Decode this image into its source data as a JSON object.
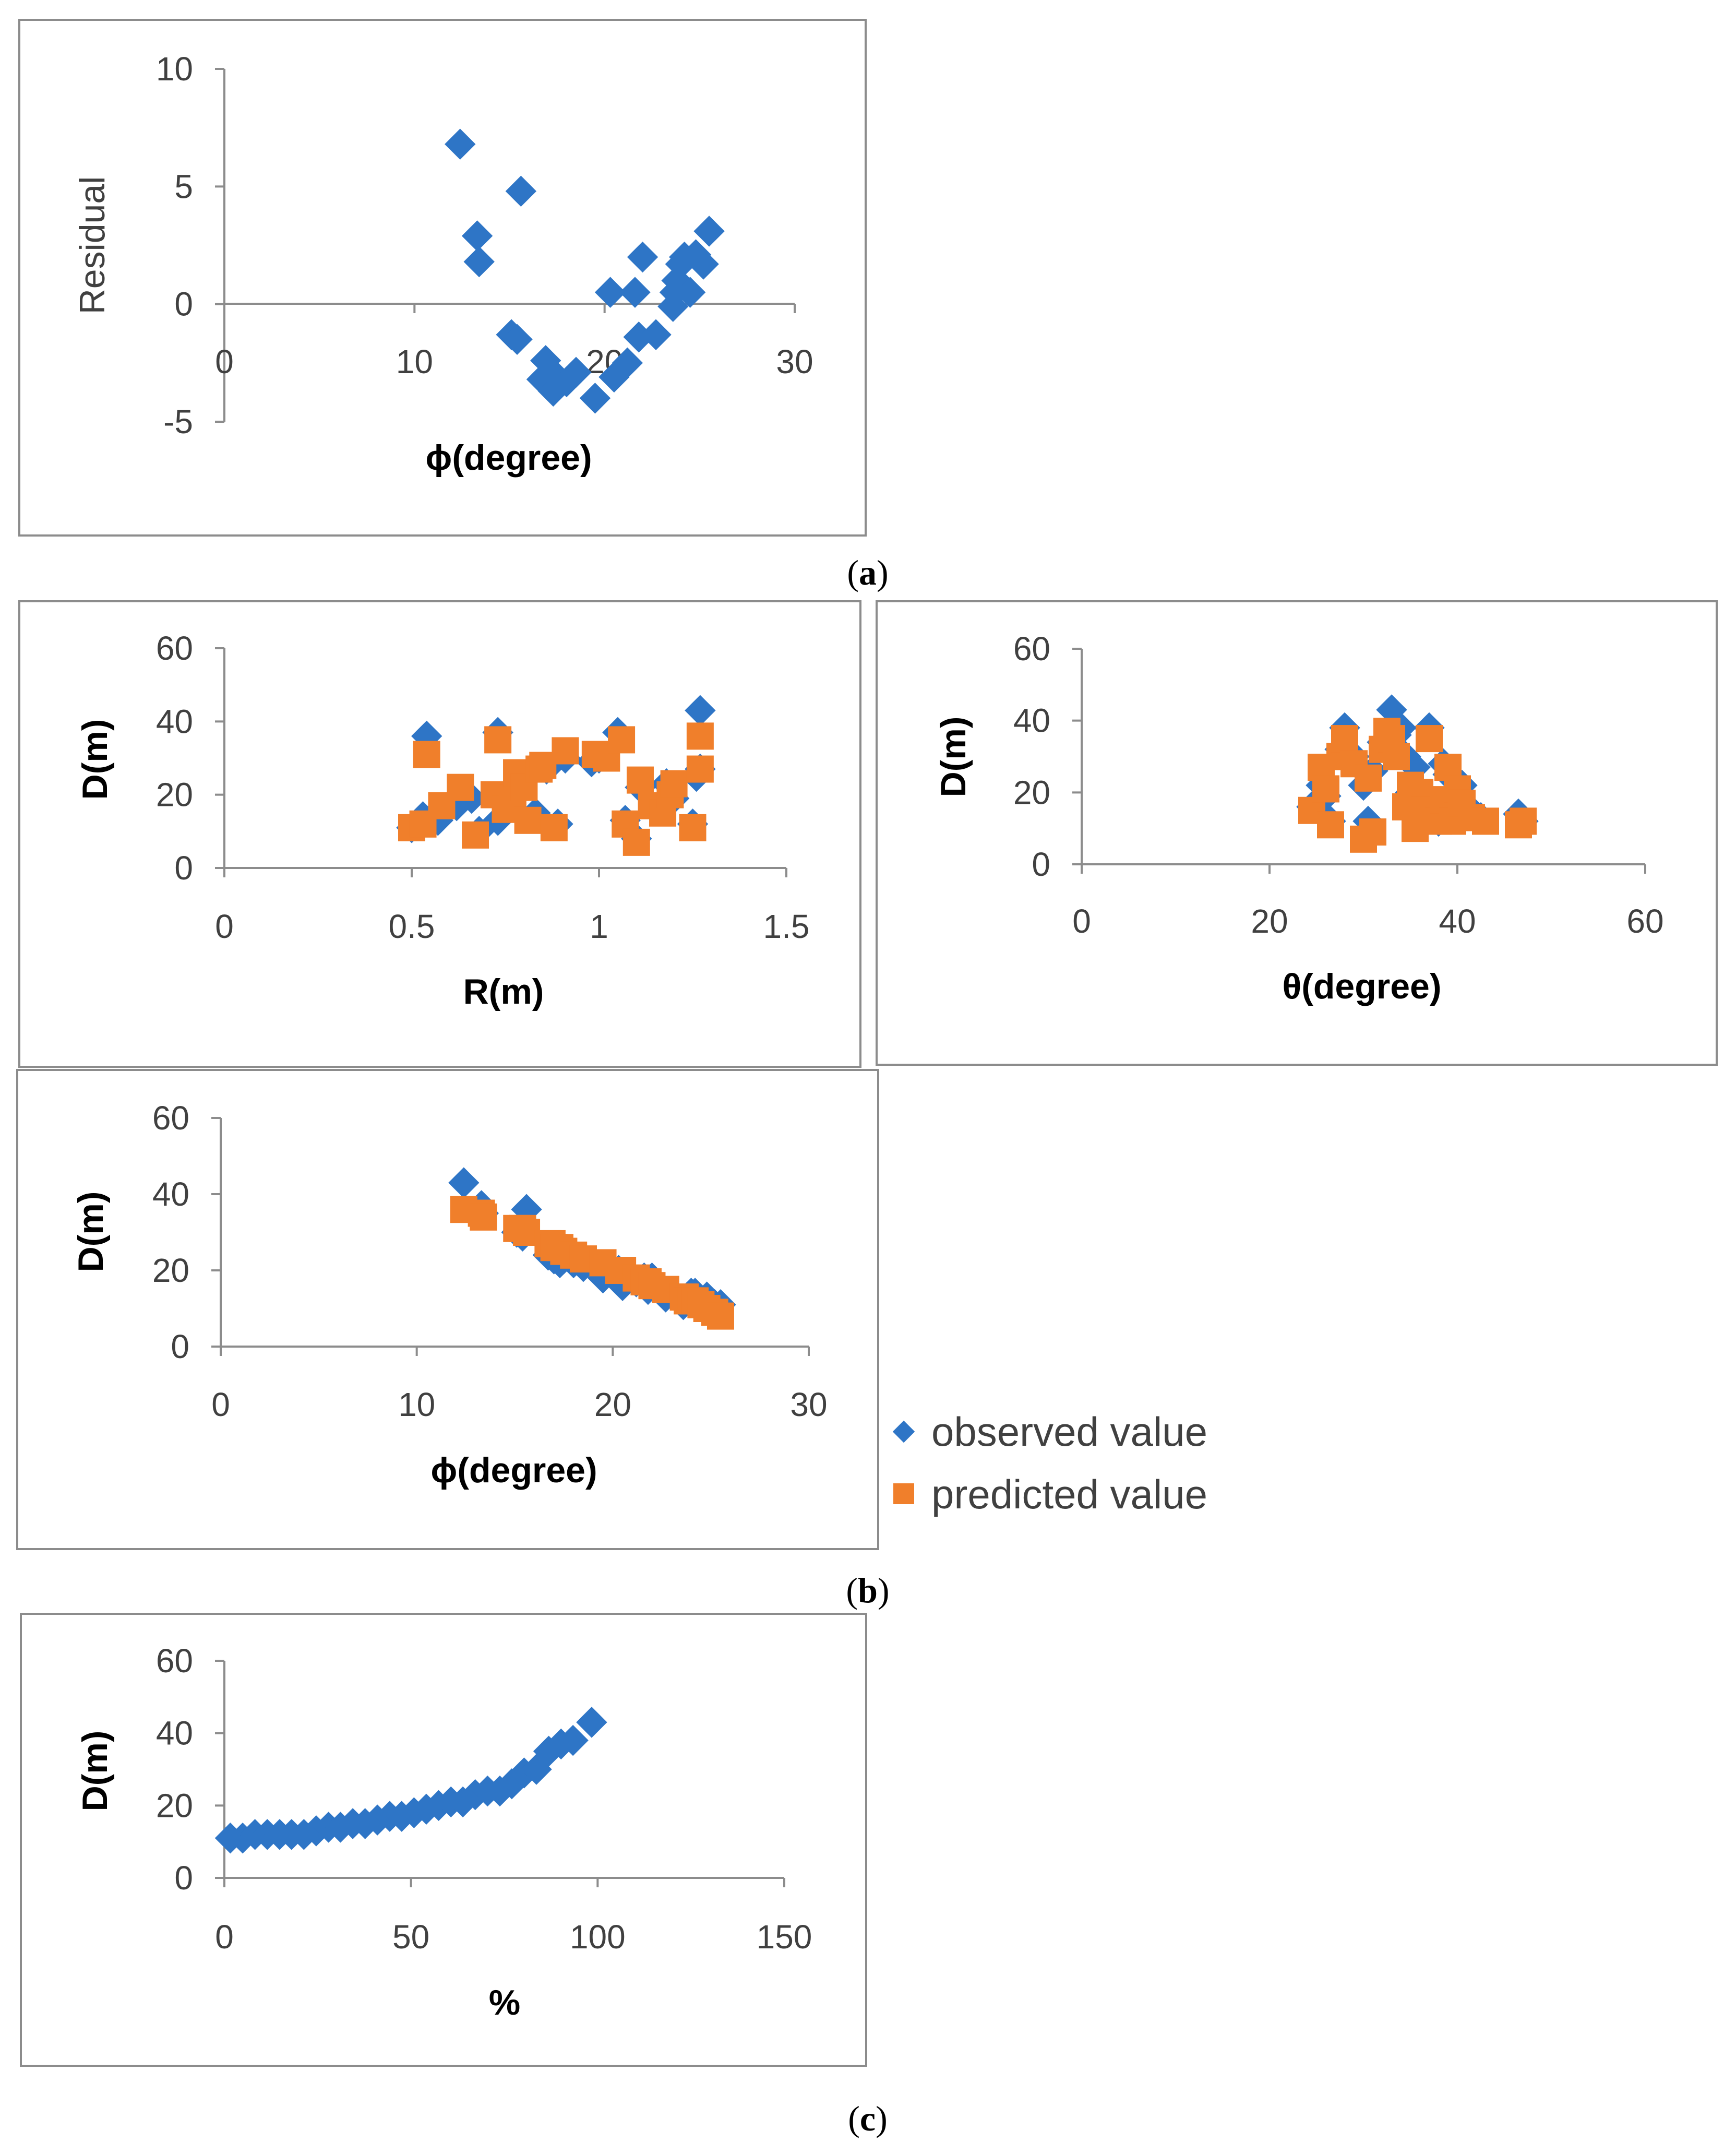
{
  "colors": {
    "observed": "#2e75c6",
    "predicted": "#f07f2b"
  },
  "captions": {
    "a": "a",
    "b": "b",
    "c": "c"
  },
  "legend": {
    "observed": "observed value",
    "predicted": "predicted value"
  },
  "chart_data": [
    {
      "id": "panel-a",
      "type": "scatter",
      "title": "",
      "xlabel": "ϕ(degree)",
      "ylabel": "Residual",
      "xlim": [
        0,
        30
      ],
      "ylim": [
        -5,
        10
      ],
      "xticks": [
        "0",
        "10",
        "20",
        "30"
      ],
      "yticks": [
        "-5",
        "0",
        "5",
        "10"
      ],
      "series": [
        {
          "name": "residual",
          "marker": "diamond",
          "x": [
            12.4,
            13.3,
            13.4,
            15.1,
            15.4,
            15.6,
            16.7,
            16.9,
            17.0,
            17.3,
            17.5,
            18.0,
            18.5,
            19.5,
            20.3,
            20.5,
            21.2,
            21.6,
            21.8,
            22.0,
            22.7,
            23.6,
            23.7,
            23.8,
            24.0,
            24.2,
            24.5,
            24.8,
            25.2,
            25.5
          ],
          "y": [
            6.8,
            2.9,
            1.8,
            -1.3,
            -1.5,
            4.8,
            -3.2,
            -2.4,
            -3.4,
            -3.7,
            -3.1,
            -3.3,
            -2.9,
            -4.0,
            0.5,
            -3.1,
            -2.5,
            0.5,
            -1.4,
            2.0,
            -1.3,
            -0.1,
            0.5,
            1.0,
            1.7,
            2.0,
            0.5,
            2.1,
            1.7,
            3.1
          ]
        }
      ]
    },
    {
      "id": "panel-b1",
      "type": "scatter",
      "title": "",
      "xlabel": "R(m)",
      "ylabel": "D(m)",
      "xlim": [
        0,
        1.5
      ],
      "ylim": [
        0,
        60
      ],
      "xticks": [
        "0",
        "0.5",
        "1",
        "1.5"
      ],
      "yticks": [
        "0",
        "20",
        "40",
        "60"
      ],
      "series": [
        {
          "name": "observed value",
          "marker": "diamond",
          "x": [
            0.5,
            0.53,
            0.54,
            0.57,
            0.62,
            0.66,
            0.68,
            0.73,
            0.73,
            0.75,
            0.77,
            0.79,
            0.81,
            0.83,
            0.86,
            0.89,
            0.91,
            0.98,
            1.0,
            1.05,
            1.07,
            1.1,
            1.11,
            1.15,
            1.18,
            1.2,
            1.25,
            1.26,
            1.27,
            1.27
          ],
          "y": [
            11,
            14,
            36,
            13,
            17,
            19,
            10,
            37,
            13,
            18,
            21,
            23,
            26,
            15,
            27,
            12,
            30,
            29,
            30,
            37,
            13,
            8,
            22,
            16,
            23,
            19,
            12,
            25,
            43,
            27
          ]
        },
        {
          "name": "predicted value",
          "marker": "square",
          "x": [
            0.5,
            0.53,
            0.54,
            0.58,
            0.63,
            0.67,
            0.72,
            0.73,
            0.75,
            0.77,
            0.78,
            0.8,
            0.81,
            0.84,
            0.85,
            0.88,
            0.91,
            0.99,
            1.02,
            1.06,
            1.07,
            1.1,
            1.11,
            1.14,
            1.17,
            1.19,
            1.2,
            1.25,
            1.27,
            1.27
          ],
          "y": [
            11,
            12,
            31,
            17,
            22,
            9,
            20,
            35,
            16,
            19,
            26,
            22,
            13,
            27,
            28,
            11,
            32,
            31,
            30,
            35,
            12,
            7,
            24,
            17,
            15,
            20,
            23,
            11,
            36,
            27
          ]
        }
      ]
    },
    {
      "id": "panel-b2",
      "type": "scatter",
      "title": "",
      "xlabel": "θ(degree)",
      "ylabel": "D(m)",
      "xlim": [
        0,
        60
      ],
      "ylim": [
        0,
        60
      ],
      "xticks": [
        "0",
        "20",
        "40",
        "60"
      ],
      "yticks": [
        "0",
        "20",
        "40",
        "60"
      ],
      "series": [
        {
          "name": "observed value",
          "marker": "diamond",
          "x": [
            24.5,
            25.5,
            26.0,
            26.5,
            27.5,
            28.0,
            29.0,
            30.0,
            30.5,
            31.0,
            32.0,
            33.0,
            33.5,
            34.0,
            34.5,
            35.0,
            35.5,
            36.0,
            36.5,
            37.0,
            38.0,
            38.5,
            39.0,
            39.5,
            40.0,
            40.5,
            41.5,
            42.5,
            46.5,
            47.0
          ],
          "y": [
            16,
            22,
            19,
            12,
            32,
            38,
            30,
            22,
            12,
            26,
            34,
            43,
            36,
            38,
            30,
            20,
            27,
            12,
            17,
            38,
            12,
            28,
            25,
            14,
            17,
            22,
            15,
            13,
            14,
            12
          ]
        },
        {
          "name": "predicted value",
          "marker": "square",
          "x": [
            24.5,
            25.5,
            26.0,
            26.5,
            27.5,
            28.0,
            29.0,
            30.0,
            30.5,
            31.0,
            32.0,
            32.5,
            33.0,
            33.5,
            34.5,
            35.0,
            35.5,
            36.0,
            36.5,
            37.0,
            38.0,
            38.5,
            39.0,
            39.5,
            40.0,
            40.5,
            41.5,
            43.0,
            46.5,
            47.0
          ],
          "y": [
            15,
            27,
            21,
            11,
            30,
            35,
            28,
            7,
            24,
            9,
            32,
            37,
            35,
            30,
            16,
            22,
            10,
            20,
            15,
            35,
            12,
            18,
            27,
            12,
            21,
            17,
            13,
            12,
            11,
            12
          ]
        }
      ]
    },
    {
      "id": "panel-b3",
      "type": "scatter",
      "title": "",
      "xlabel": "ϕ(degree)",
      "ylabel": "D(m)",
      "xlim": [
        0,
        30
      ],
      "ylim": [
        0,
        60
      ],
      "xticks": [
        "0",
        "10",
        "20",
        "30"
      ],
      "yticks": [
        "0",
        "20",
        "40",
        "60"
      ],
      "series": [
        {
          "name": "observed value",
          "marker": "diamond",
          "x": [
            12.4,
            13.3,
            13.4,
            15.1,
            15.4,
            15.6,
            16.7,
            16.9,
            17.0,
            17.3,
            17.5,
            18.0,
            18.5,
            19.5,
            20.3,
            20.5,
            21.2,
            21.6,
            21.8,
            22.0,
            22.7,
            23.6,
            23.7,
            23.8,
            24.0,
            24.2,
            24.5,
            24.8,
            25.2,
            25.5
          ],
          "y": [
            43,
            37,
            35,
            30,
            29,
            36,
            24,
            25,
            23,
            22,
            23,
            22,
            21,
            18,
            20,
            16,
            17,
            18,
            15,
            18,
            13,
            11,
            12,
            13,
            14,
            14,
            11,
            13,
            11,
            11
          ]
        },
        {
          "name": "predicted value",
          "marker": "square",
          "x": [
            12.4,
            13.3,
            13.4,
            15.1,
            15.4,
            15.6,
            16.7,
            16.9,
            17.0,
            17.3,
            17.5,
            18.0,
            18.5,
            19.5,
            20.3,
            20.5,
            21.2,
            21.6,
            21.8,
            22.0,
            22.7,
            23.6,
            23.7,
            23.8,
            24.0,
            24.2,
            24.5,
            24.8,
            25.2,
            25.5
          ],
          "y": [
            36,
            35,
            34,
            31,
            31,
            30,
            27,
            27,
            26,
            26,
            25,
            24,
            23,
            22,
            20,
            20,
            18,
            17,
            17,
            16,
            15,
            13,
            13,
            12,
            12,
            12,
            11,
            10,
            9,
            8
          ]
        }
      ]
    },
    {
      "id": "panel-c",
      "type": "scatter",
      "title": "",
      "xlabel": "%",
      "ylabel": "D(m)",
      "xlim": [
        0,
        150
      ],
      "ylim": [
        0,
        60
      ],
      "xticks": [
        "0",
        "50",
        "100",
        "150"
      ],
      "yticks": [
        "0",
        "20",
        "40",
        "60"
      ],
      "series": [
        {
          "name": "observed value",
          "marker": "diamond",
          "x": [
            1.6,
            4.9,
            8.2,
            11.5,
            14.8,
            18.0,
            21.3,
            24.6,
            27.9,
            31.1,
            34.4,
            37.7,
            41.0,
            44.3,
            47.5,
            50.8,
            54.1,
            57.4,
            60.7,
            63.9,
            67.2,
            70.5,
            73.8,
            77.0,
            80.3,
            83.6,
            86.9,
            90.2,
            93.4,
            98.4
          ],
          "y": [
            11,
            11,
            12,
            12,
            12,
            12,
            12,
            13,
            14,
            14,
            15,
            15,
            16,
            17,
            17,
            18,
            19,
            20,
            21,
            21,
            23,
            24,
            24,
            26,
            29,
            30,
            35,
            37,
            38,
            43
          ]
        }
      ]
    }
  ]
}
